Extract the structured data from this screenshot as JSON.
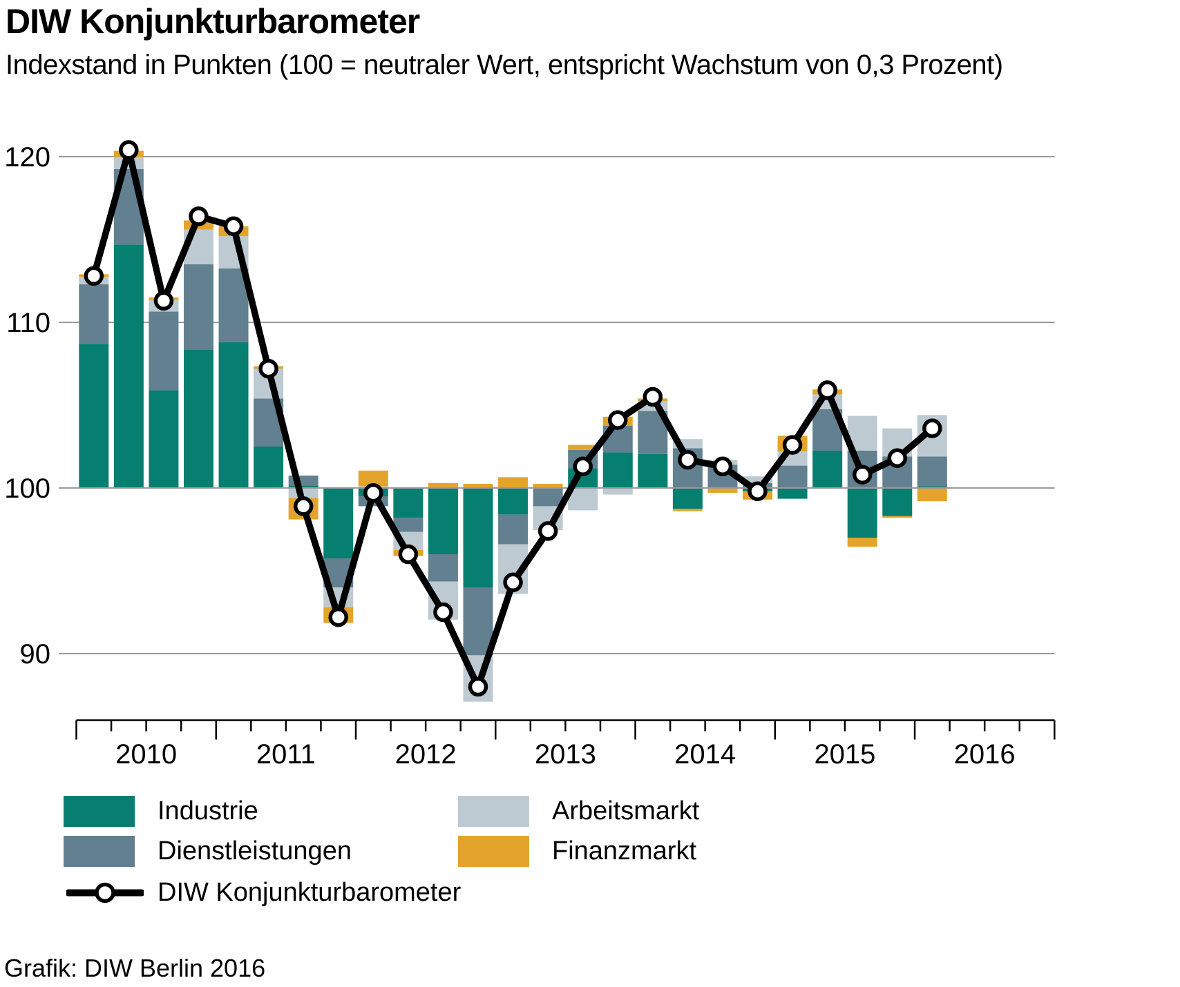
{
  "title": "DIW Konjunkturbarometer",
  "subtitle": "Indexstand in Punkten (100 = neutraler Wert, entspricht Wachstum von 0,3 Prozent)",
  "footer": "Grafik: DIW Berlin 2016",
  "legend": {
    "items": [
      {
        "label": "Industrie",
        "color": "#067F70"
      },
      {
        "label": "Dienstleistungen",
        "color": "#62808F"
      },
      {
        "label": "Arbeitsmarkt",
        "color": "#BDCAD2"
      },
      {
        "label": "Finanzmarkt",
        "color": "#E4A42C"
      }
    ],
    "line_item": {
      "label": "DIW Konjunkturbarometer",
      "color": "#000000"
    }
  },
  "chart_data": {
    "type": "bar",
    "stacked": true,
    "overlay": "line",
    "title": "DIW Konjunkturbarometer",
    "subtitle": "Indexstand in Punkten (100 = neutraler Wert, entspricht Wachstum von 0,3 Prozent)",
    "baseline": 100,
    "ylim": [
      86,
      122
    ],
    "yticks": [
      120,
      110,
      100,
      90
    ],
    "grid": true,
    "legend_position": "bottom",
    "x_year_labels": [
      "2010",
      "2011",
      "2012",
      "2013",
      "2014",
      "2015",
      "2016"
    ],
    "categories": [
      "2010 Q1",
      "2010 Q2",
      "2010 Q3",
      "2010 Q4",
      "2011 Q1",
      "2011 Q2",
      "2011 Q3",
      "2011 Q4",
      "2012 Q1",
      "2012 Q2",
      "2012 Q3",
      "2012 Q4",
      "2013 Q1",
      "2013 Q2",
      "2013 Q3",
      "2013 Q4",
      "2014 Q1",
      "2014 Q2",
      "2014 Q3",
      "2014 Q4",
      "2015 Q1",
      "2015 Q2",
      "2015 Q3",
      "2015 Q4",
      "2016 Q1"
    ],
    "series": [
      {
        "name": "Industrie",
        "color": "#067F70",
        "values": [
          8.7,
          14.7,
          5.9,
          8.35,
          8.8,
          2.5,
          0.15,
          -4.25,
          -0.5,
          -1.8,
          -4.0,
          -6.0,
          -1.6,
          0,
          1.2,
          2.15,
          2.05,
          -1.25,
          0,
          -0.2,
          -0.65,
          2.25,
          -3.0,
          -1.7,
          0.1
        ]
      },
      {
        "name": "Dienstleistungen",
        "color": "#62808F",
        "values": [
          3.6,
          4.55,
          4.75,
          5.15,
          4.45,
          2.9,
          0.6,
          -1.75,
          -0.6,
          -0.85,
          -1.65,
          -4.1,
          -1.8,
          -1.1,
          1.1,
          1.6,
          2.6,
          2.4,
          1.4,
          0.3,
          1.35,
          2.5,
          2.25,
          1.9,
          1.8
        ]
      },
      {
        "name": "Arbeitsmarkt",
        "color": "#BDCAD2",
        "values": [
          0.45,
          0.7,
          0.7,
          2.1,
          1.95,
          1.8,
          -0.6,
          -1.2,
          0.1,
          -1.1,
          -2.3,
          -2.8,
          -3.0,
          -1.45,
          -1.35,
          -0.4,
          0.6,
          0.55,
          0.3,
          0.4,
          0.85,
          0.9,
          2.1,
          1.7,
          2.5
        ]
      },
      {
        "name": "Finanzmarkt",
        "color": "#E4A42C",
        "values": [
          0.15,
          0.4,
          0.15,
          0.55,
          0.6,
          0.15,
          -1.3,
          -0.95,
          0.95,
          -0.35,
          0.3,
          0.25,
          0.65,
          0.25,
          0.3,
          0.55,
          0.15,
          -0.15,
          -0.3,
          -0.5,
          0.95,
          0.3,
          -0.55,
          -0.1,
          -0.8
        ]
      }
    ],
    "line_series": {
      "name": "DIW Konjunkturbarometer",
      "color": "#000000",
      "values": [
        112.8,
        120.4,
        111.3,
        116.4,
        115.8,
        107.2,
        98.9,
        92.2,
        99.7,
        96.0,
        92.5,
        88.0,
        94.3,
        97.4,
        101.3,
        104.1,
        105.5,
        101.7,
        101.3,
        99.8,
        102.6,
        105.9,
        100.8,
        101.8,
        103.6
      ]
    }
  }
}
